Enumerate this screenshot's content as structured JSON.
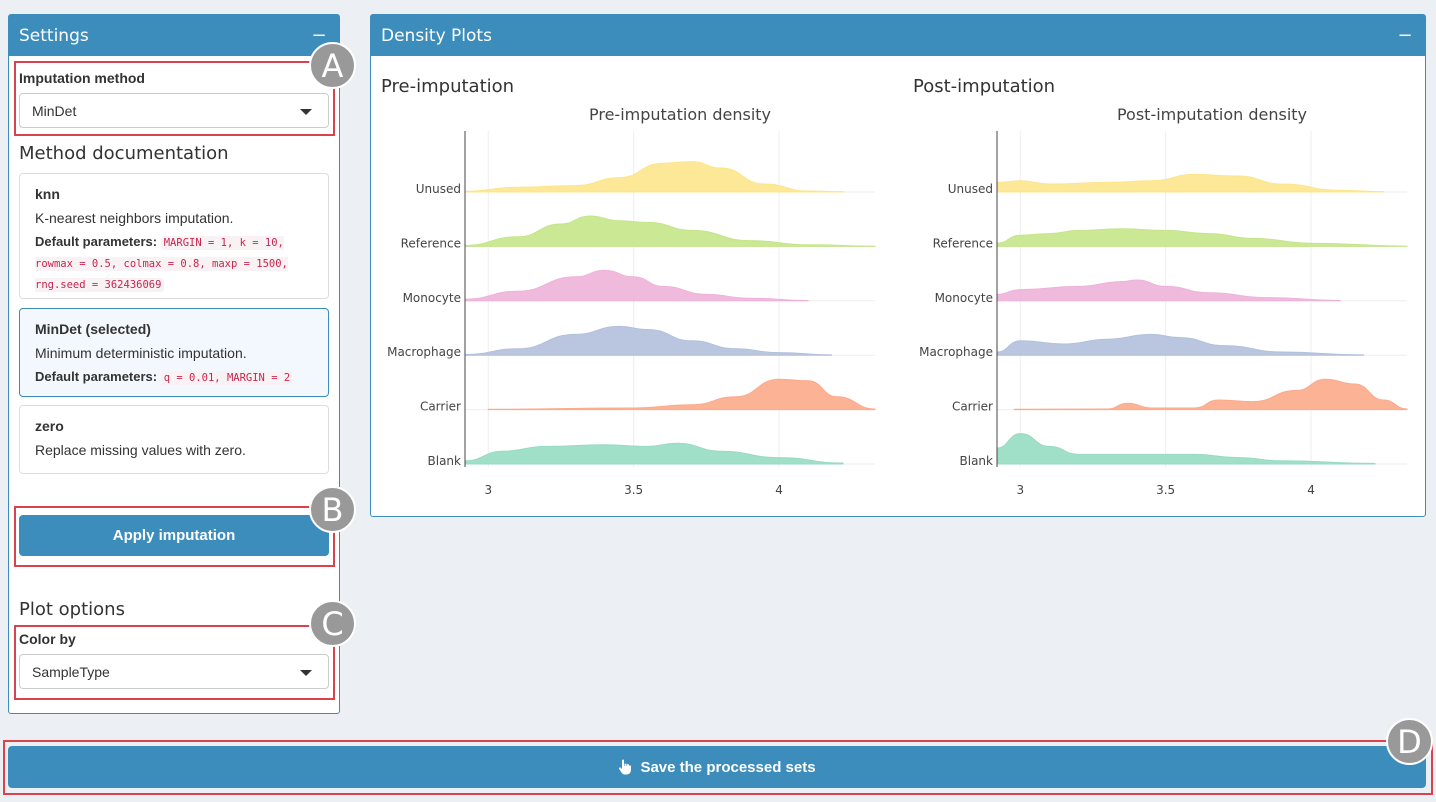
{
  "settings": {
    "title": "Settings",
    "collapse": "−",
    "imputation_label": "Imputation method",
    "imputation_value": "MinDet",
    "doc_heading": "Method documentation",
    "methods": [
      {
        "name": "knn",
        "desc": "K-nearest neighbors imputation.",
        "params_label": "Default parameters:",
        "params": "MARGIN = 1, k = 10, rowmax = 0.5, colmax = 0.8, maxp = 1500, rng.seed = 362436069"
      },
      {
        "name": "MinDet (selected)",
        "desc": "Minimum deterministic imputation.",
        "params_label": "Default parameters:",
        "params": "q = 0.01, MARGIN = 2"
      },
      {
        "name": "zero",
        "desc": "Replace missing values with zero."
      }
    ],
    "apply_label": "Apply imputation",
    "plot_options_heading": "Plot options",
    "color_by_label": "Color by",
    "color_by_value": "SampleType"
  },
  "density": {
    "title": "Density Plots",
    "collapse": "−",
    "pre_heading": "Pre-imputation",
    "post_heading": "Post-imputation"
  },
  "save_label": "Save the processed sets",
  "annotations": [
    "A",
    "B",
    "C",
    "D"
  ],
  "chart_data": [
    {
      "type": "area",
      "title": "Pre-imputation density",
      "categories": [
        "Unused",
        "Reference",
        "Monocyte",
        "Macrophage",
        "Carrier",
        "Blank"
      ],
      "x_ticks": [
        3,
        3.5,
        4
      ],
      "xlim": [
        2.92,
        4.33
      ],
      "colors": [
        "#fde58c",
        "#c5e58a",
        "#eeb2d9",
        "#b2c0dc",
        "#fcaa8a",
        "#96dbc2"
      ],
      "series": [
        {
          "name": "Unused",
          "x_range": [
            2.92,
            4.22
          ],
          "points": [
            [
              2.92,
              0.02
            ],
            [
              3.1,
              0.15
            ],
            [
              3.3,
              0.2
            ],
            [
              3.45,
              0.45
            ],
            [
              3.6,
              0.9
            ],
            [
              3.7,
              0.95
            ],
            [
              3.8,
              0.75
            ],
            [
              3.95,
              0.25
            ],
            [
              4.1,
              0.03
            ],
            [
              4.22,
              0.01
            ]
          ]
        },
        {
          "name": "Reference",
          "x_range": [
            2.92,
            4.33
          ],
          "points": [
            [
              2.92,
              0.03
            ],
            [
              3.1,
              0.3
            ],
            [
              3.25,
              0.7
            ],
            [
              3.35,
              0.95
            ],
            [
              3.45,
              0.8
            ],
            [
              3.55,
              0.75
            ],
            [
              3.7,
              0.5
            ],
            [
              3.9,
              0.18
            ],
            [
              4.1,
              0.05
            ],
            [
              4.33,
              0.01
            ]
          ]
        },
        {
          "name": "Monocyte",
          "x_range": [
            2.92,
            4.1
          ],
          "points": [
            [
              2.92,
              0.05
            ],
            [
              3.1,
              0.3
            ],
            [
              3.3,
              0.75
            ],
            [
              3.4,
              0.95
            ],
            [
              3.5,
              0.75
            ],
            [
              3.6,
              0.45
            ],
            [
              3.75,
              0.2
            ],
            [
              3.9,
              0.08
            ],
            [
              4.1,
              0.01
            ]
          ]
        },
        {
          "name": "Macrophage",
          "x_range": [
            2.92,
            4.18
          ],
          "points": [
            [
              2.92,
              0.02
            ],
            [
              3.1,
              0.2
            ],
            [
              3.3,
              0.65
            ],
            [
              3.45,
              0.9
            ],
            [
              3.55,
              0.8
            ],
            [
              3.7,
              0.45
            ],
            [
              3.85,
              0.2
            ],
            [
              4.0,
              0.08
            ],
            [
              4.18,
              0.01
            ]
          ]
        },
        {
          "name": "Carrier",
          "x_range": [
            3.0,
            4.33
          ],
          "points": [
            [
              3.0,
              0.01
            ],
            [
              3.5,
              0.05
            ],
            [
              3.7,
              0.15
            ],
            [
              3.85,
              0.4
            ],
            [
              4.0,
              0.95
            ],
            [
              4.1,
              0.9
            ],
            [
              4.2,
              0.4
            ],
            [
              4.33,
              0.02
            ]
          ]
        },
        {
          "name": "Blank",
          "x_range": [
            2.92,
            4.22
          ],
          "points": [
            [
              2.92,
              0.1
            ],
            [
              3.05,
              0.4
            ],
            [
              3.2,
              0.55
            ],
            [
              3.4,
              0.6
            ],
            [
              3.55,
              0.55
            ],
            [
              3.65,
              0.65
            ],
            [
              3.8,
              0.4
            ],
            [
              4.0,
              0.2
            ],
            [
              4.22,
              0.03
            ]
          ]
        }
      ]
    },
    {
      "type": "area",
      "title": "Post-imputation density",
      "categories": [
        "Unused",
        "Reference",
        "Monocyte",
        "Macrophage",
        "Carrier",
        "Blank"
      ],
      "x_ticks": [
        3,
        3.5,
        4
      ],
      "xlim": [
        2.92,
        4.33
      ],
      "colors": [
        "#fde58c",
        "#c5e58a",
        "#eeb2d9",
        "#b2c0dc",
        "#fcaa8a",
        "#96dbc2"
      ],
      "series": [
        {
          "name": "Unused",
          "x_range": [
            2.92,
            4.25
          ],
          "points": [
            [
              2.92,
              0.3
            ],
            [
              3.0,
              0.35
            ],
            [
              3.1,
              0.25
            ],
            [
              3.3,
              0.3
            ],
            [
              3.45,
              0.35
            ],
            [
              3.6,
              0.55
            ],
            [
              3.75,
              0.5
            ],
            [
              3.9,
              0.25
            ],
            [
              4.1,
              0.05
            ],
            [
              4.25,
              0.01
            ]
          ]
        },
        {
          "name": "Reference",
          "x_range": [
            2.92,
            4.33
          ],
          "points": [
            [
              2.92,
              0.1
            ],
            [
              3.0,
              0.35
            ],
            [
              3.1,
              0.4
            ],
            [
              3.2,
              0.5
            ],
            [
              3.35,
              0.55
            ],
            [
              3.5,
              0.5
            ],
            [
              3.65,
              0.4
            ],
            [
              3.8,
              0.25
            ],
            [
              4.0,
              0.1
            ],
            [
              4.33,
              0.01
            ]
          ]
        },
        {
          "name": "Monocyte",
          "x_range": [
            2.92,
            4.1
          ],
          "points": [
            [
              2.92,
              0.2
            ],
            [
              3.0,
              0.35
            ],
            [
              3.2,
              0.45
            ],
            [
              3.35,
              0.6
            ],
            [
              3.4,
              0.65
            ],
            [
              3.5,
              0.45
            ],
            [
              3.65,
              0.25
            ],
            [
              3.85,
              0.1
            ],
            [
              4.1,
              0.01
            ]
          ]
        },
        {
          "name": "Macrophage",
          "x_range": [
            2.92,
            4.18
          ],
          "points": [
            [
              2.92,
              0.1
            ],
            [
              3.0,
              0.45
            ],
            [
              3.15,
              0.35
            ],
            [
              3.3,
              0.5
            ],
            [
              3.45,
              0.65
            ],
            [
              3.55,
              0.55
            ],
            [
              3.7,
              0.3
            ],
            [
              3.9,
              0.1
            ],
            [
              4.18,
              0.01
            ]
          ]
        },
        {
          "name": "Carrier",
          "x_range": [
            2.98,
            4.33
          ],
          "points": [
            [
              2.98,
              0.01
            ],
            [
              3.3,
              0.02
            ],
            [
              3.37,
              0.2
            ],
            [
              3.45,
              0.05
            ],
            [
              3.6,
              0.05
            ],
            [
              3.68,
              0.3
            ],
            [
              3.8,
              0.25
            ],
            [
              3.95,
              0.6
            ],
            [
              4.05,
              0.95
            ],
            [
              4.15,
              0.8
            ],
            [
              4.25,
              0.3
            ],
            [
              4.33,
              0.02
            ]
          ]
        },
        {
          "name": "Blank",
          "x_range": [
            2.92,
            4.22
          ],
          "points": [
            [
              2.92,
              0.5
            ],
            [
              3.0,
              0.95
            ],
            [
              3.1,
              0.55
            ],
            [
              3.2,
              0.3
            ],
            [
              3.4,
              0.3
            ],
            [
              3.6,
              0.3
            ],
            [
              3.75,
              0.2
            ],
            [
              3.9,
              0.1
            ],
            [
              4.22,
              0.02
            ]
          ]
        }
      ]
    }
  ]
}
